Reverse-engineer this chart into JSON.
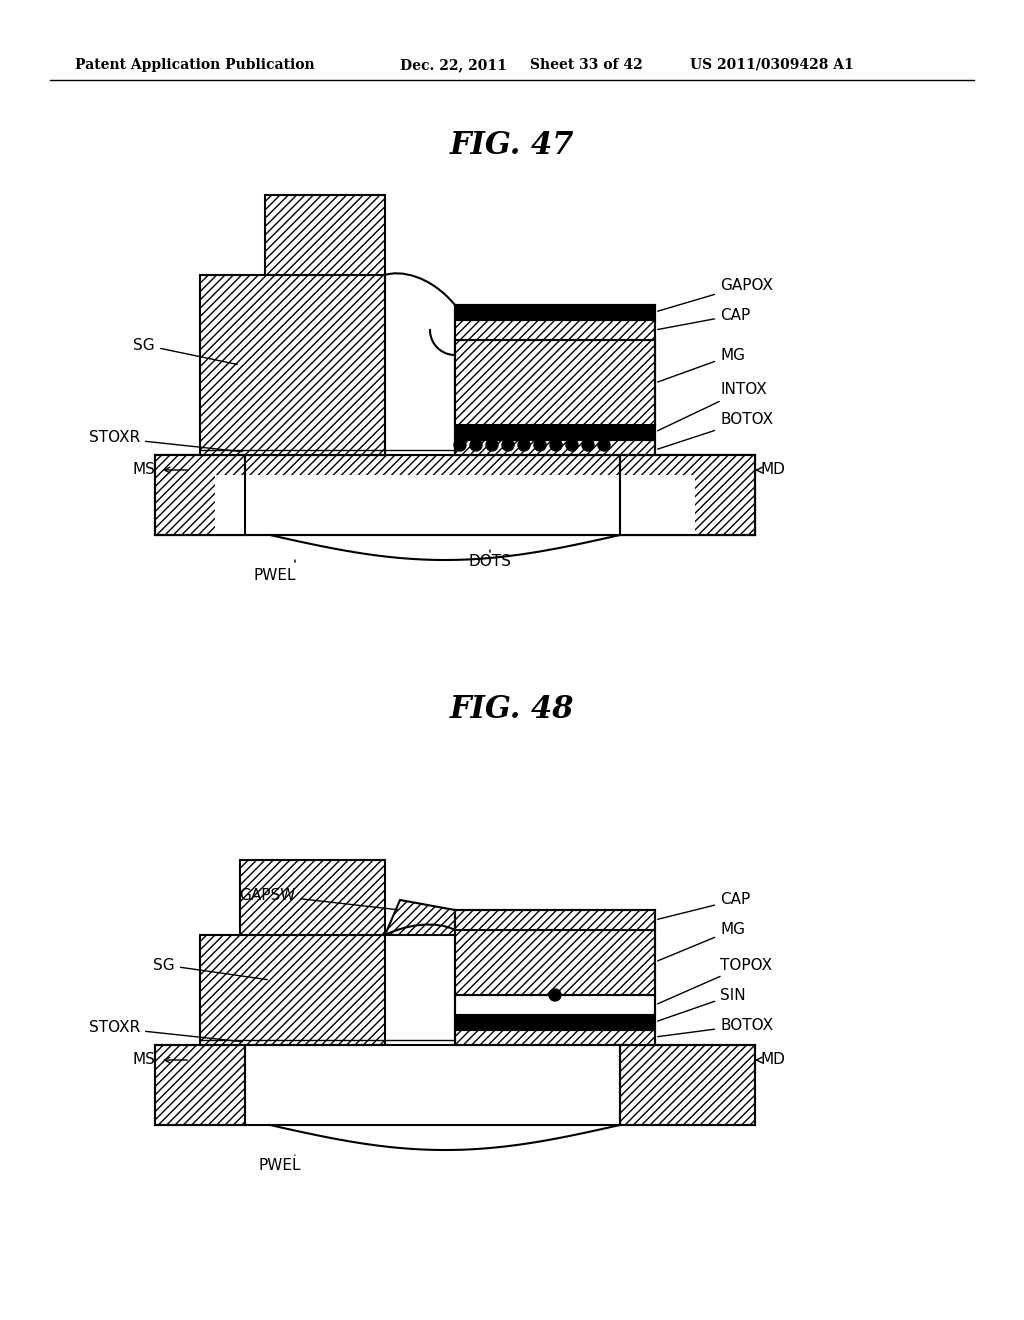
{
  "bg_color": "#ffffff",
  "header_text": "Patent Application Publication",
  "header_date": "Dec. 22, 2011",
  "header_sheet": "Sheet 33 of 42",
  "header_patent": "US 2011/0309428 A1",
  "fig47_title": "FIG. 47",
  "fig48_title": "FIG. 48",
  "hatch_pattern": "////",
  "hatch_pattern2": "\\\\\\\\",
  "line_color": "#000000",
  "fill_color": "#ffffff",
  "hatch_color": "#000000"
}
